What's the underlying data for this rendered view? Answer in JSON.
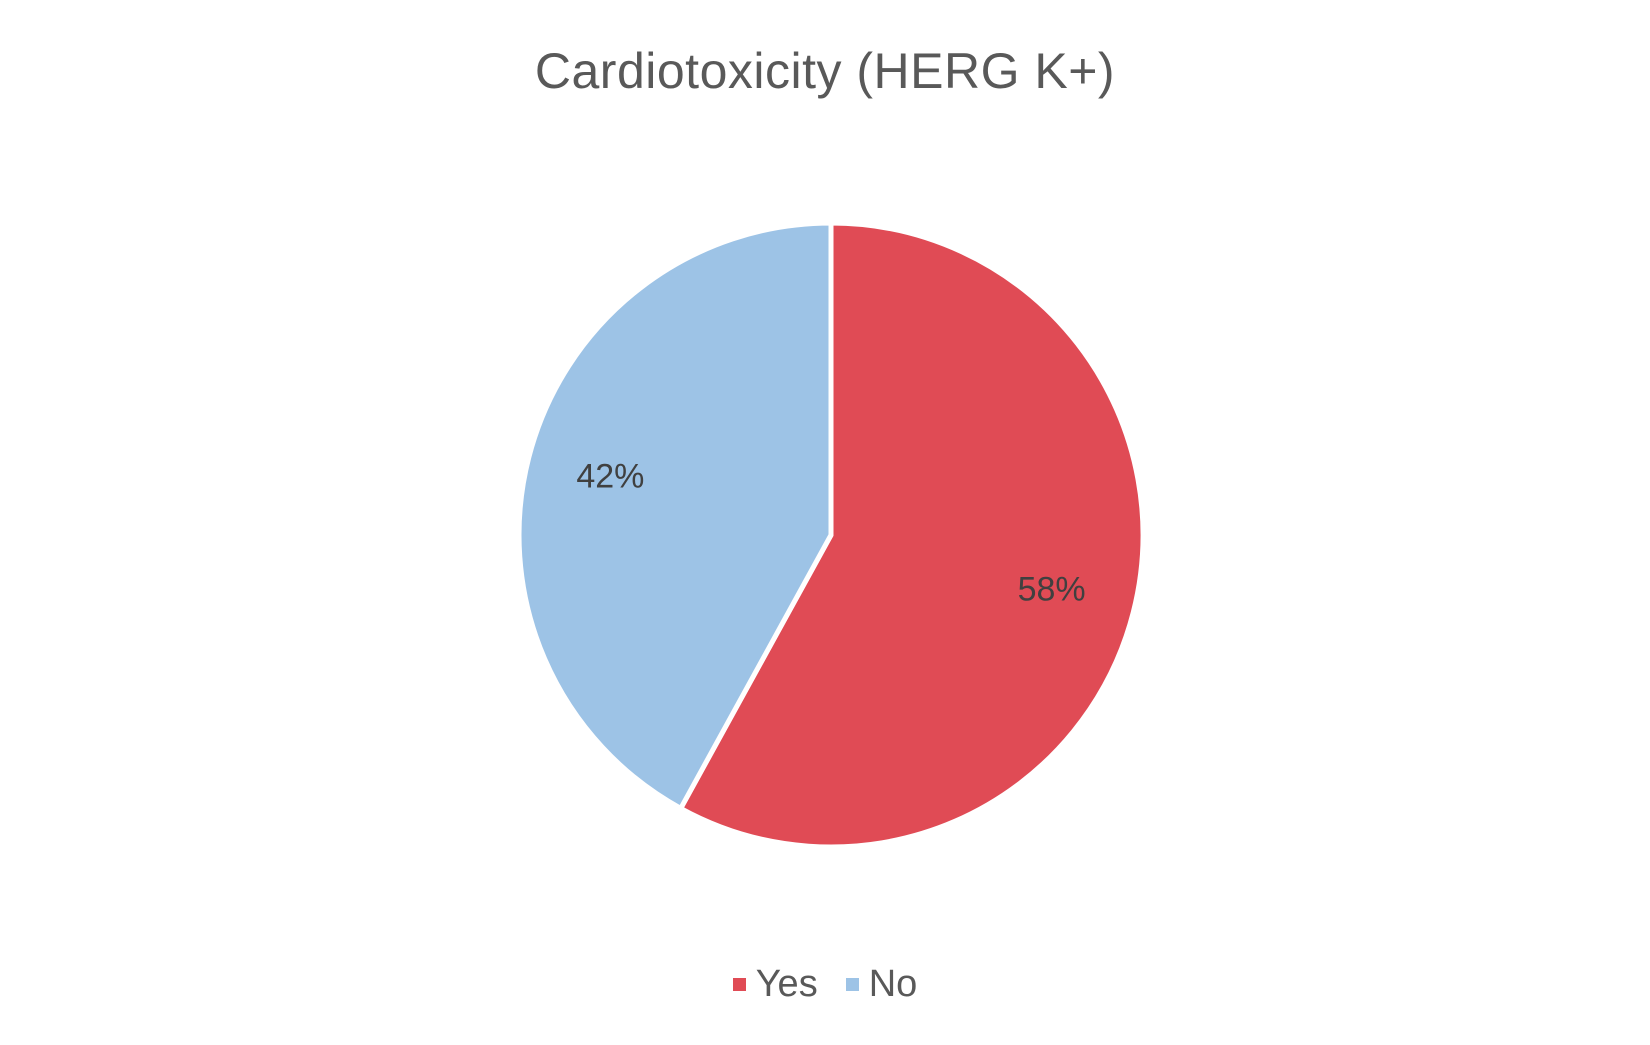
{
  "chart_data": {
    "type": "pie",
    "title": "Cardiotoxicity (HERG K+)",
    "categories": [
      "Yes",
      "No"
    ],
    "values": [
      58,
      42
    ],
    "labels": [
      "58%",
      "42%"
    ],
    "colors": [
      "#E04B55",
      "#9DC3E6"
    ],
    "legend_position": "bottom"
  }
}
